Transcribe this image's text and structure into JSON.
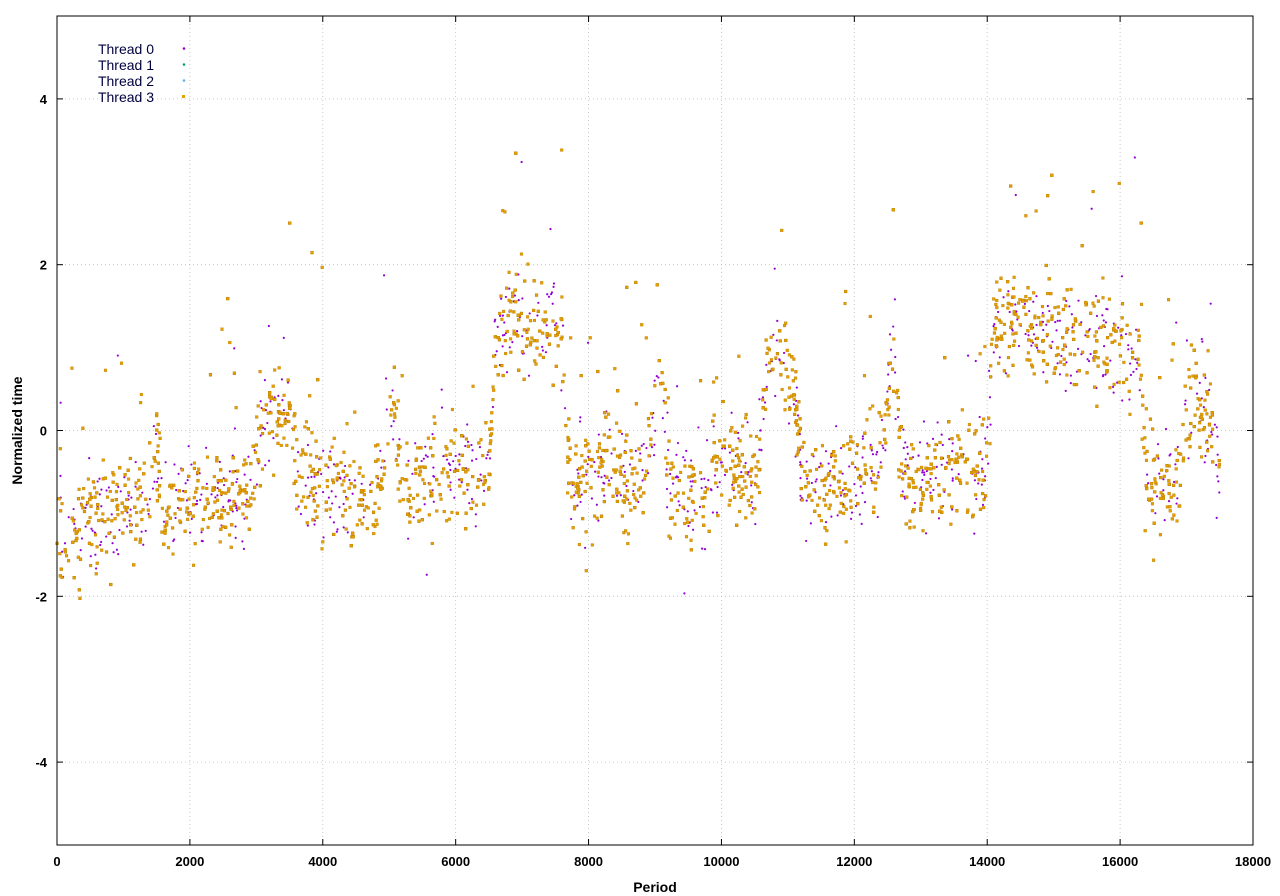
{
  "chart_data": {
    "type": "scatter",
    "title": "",
    "xlabel": "Period",
    "ylabel": "Normalized time",
    "xlim": [
      0,
      18000
    ],
    "ylim": [
      -5,
      5
    ],
    "xticks": [
      0,
      2000,
      4000,
      6000,
      8000,
      10000,
      12000,
      14000,
      16000,
      18000
    ],
    "yticks": [
      -4,
      -2,
      0,
      2,
      4
    ],
    "grid": true,
    "legend_position": "top-left",
    "series": [
      {
        "name": "Thread 0",
        "color": "#9400d3",
        "marker": "plus"
      },
      {
        "name": "Thread 1",
        "color": "#009e73",
        "marker": "cross"
      },
      {
        "name": "Thread 2",
        "color": "#56b4e9",
        "marker": "asterisk"
      },
      {
        "name": "Thread 3",
        "color": "#e69f00",
        "marker": "square"
      }
    ],
    "trend": {
      "x": [
        0,
        300,
        700,
        1000,
        1300,
        1500,
        1600,
        1800,
        2000,
        2500,
        2900,
        3000,
        3200,
        3500,
        3600,
        3800,
        4000,
        4200,
        4400,
        4700,
        4900,
        5000,
        5200,
        5500,
        5800,
        6000,
        6300,
        6500,
        6600,
        6800,
        7000,
        7200,
        7400,
        7600,
        7700,
        7800,
        8000,
        8300,
        8600,
        8900,
        9100,
        9200,
        9400,
        9700,
        10000,
        10300,
        10500,
        10700,
        10900,
        11100,
        11200,
        11500,
        12000,
        12400,
        12600,
        12700,
        12800,
        13000,
        13500,
        14000,
        14100,
        14400,
        15000,
        15500,
        16000,
        16300,
        16400,
        16600,
        16900,
        17100,
        17500
      ],
      "y": [
        -1.4,
        -1.2,
        -1.0,
        -0.9,
        -0.8,
        -0.3,
        -0.9,
        -0.9,
        -0.9,
        -0.85,
        -0.8,
        -0.1,
        0.3,
        0.3,
        -0.6,
        -0.6,
        -0.7,
        -0.6,
        -0.7,
        -0.7,
        -0.5,
        0.6,
        -0.6,
        -0.7,
        -0.6,
        -0.4,
        -0.4,
        -0.4,
        1.0,
        1.4,
        1.3,
        1.2,
        1.2,
        1.3,
        -0.6,
        -0.7,
        -0.6,
        -0.3,
        -0.6,
        -0.5,
        1.0,
        -0.7,
        -0.7,
        -0.8,
        -0.4,
        -0.4,
        -0.6,
        0.8,
        1.0,
        0.4,
        -0.5,
        -0.6,
        -0.6,
        -0.4,
        1.2,
        -0.5,
        -0.6,
        -0.6,
        -0.5,
        -0.4,
        1.2,
        1.3,
        1.2,
        1.1,
        1.0,
        0.9,
        -0.6,
        -0.7,
        -0.5,
        0.6,
        -0.4
      ]
    },
    "spread": 0.45,
    "spike_extent": 2.2,
    "points_per_series": 2500
  }
}
